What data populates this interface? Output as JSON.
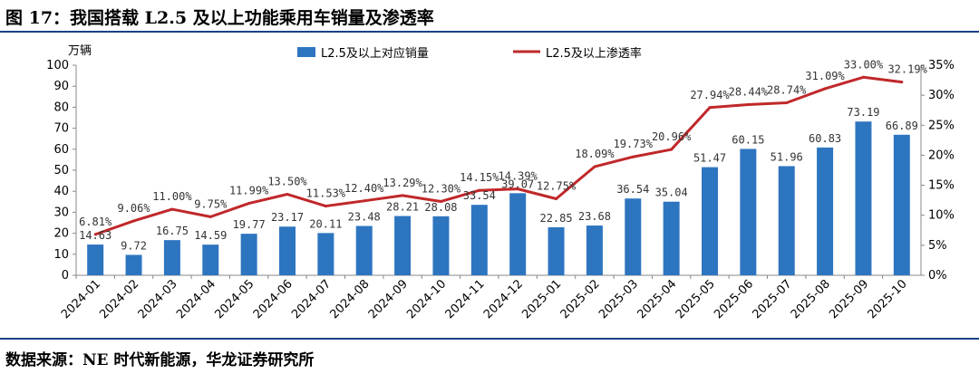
{
  "title": "图 17：我国搭载 L2.5 及以上功能乘用车销量及渗透率",
  "source": "数据来源：NE 时代新能源，华龙证券研究所",
  "colors": {
    "bar": "#2e75c0",
    "line": "#c0282a",
    "rule": "#1a3f8a"
  },
  "chart_data": {
    "type": "bar+line",
    "categories": [
      "2024-01",
      "2024-02",
      "2024-03",
      "2024-04",
      "2024-05",
      "2024-06",
      "2024-07",
      "2024-08",
      "2024-09",
      "2024-10",
      "2024-11",
      "2024-12",
      "2025-01",
      "2025-02",
      "2025-03",
      "2025-04",
      "2025-05",
      "2025-06",
      "2025-07",
      "2025-08",
      "2025-09",
      "2025-10"
    ],
    "series": [
      {
        "name": "L2.5及以上对应销量",
        "type": "bar",
        "axis": "left",
        "values": [
          14.63,
          9.72,
          16.75,
          14.59,
          19.77,
          23.17,
          20.11,
          23.48,
          28.21,
          28.08,
          33.54,
          39.07,
          22.85,
          23.68,
          36.54,
          35.04,
          51.47,
          60.15,
          51.96,
          60.83,
          73.19,
          66.89
        ],
        "labels": [
          "14.63",
          "9.72",
          "16.75",
          "14.59",
          "19.77",
          "23.17",
          "20.11",
          "23.48",
          "28.21",
          "28.08",
          "33.54",
          "39.07",
          "22.85",
          "23.68",
          "36.54",
          "35.04",
          "51.47",
          "60.15",
          "51.96",
          "60.83",
          "73.19",
          "66.89"
        ]
      },
      {
        "name": "L2.5及以上渗透率",
        "type": "line",
        "axis": "right",
        "values": [
          6.81,
          9.06,
          11.0,
          9.75,
          11.99,
          13.5,
          11.53,
          12.4,
          13.29,
          12.3,
          14.15,
          14.39,
          12.75,
          18.09,
          19.73,
          20.96,
          27.94,
          28.44,
          28.74,
          31.09,
          33.0,
          32.19
        ],
        "labels": [
          "6.81%",
          "9.06%",
          "11.00%",
          "9.75%",
          "11.99%",
          "13.50%",
          "11.53%",
          "12.40%",
          "13.29%",
          "12.30%",
          "14.15%",
          "14.39%",
          "12.75%",
          "18.09%",
          "19.73%",
          "20.96%",
          "27.94%",
          "28.44%",
          "28.74%",
          "31.09%",
          "33.00%",
          "32.19%"
        ]
      }
    ],
    "y_left": {
      "unit_label": "万辆",
      "ylim": [
        0,
        100
      ],
      "ticks": [
        "0",
        "10",
        "20",
        "30",
        "40",
        "50",
        "60",
        "70",
        "80",
        "90",
        "100"
      ]
    },
    "y_right": {
      "ylim": [
        0,
        35
      ],
      "ticks": [
        "0%",
        "5%",
        "10%",
        "15%",
        "20%",
        "25%",
        "30%",
        "35%"
      ]
    },
    "grid": false,
    "legend_position": "top-center"
  }
}
